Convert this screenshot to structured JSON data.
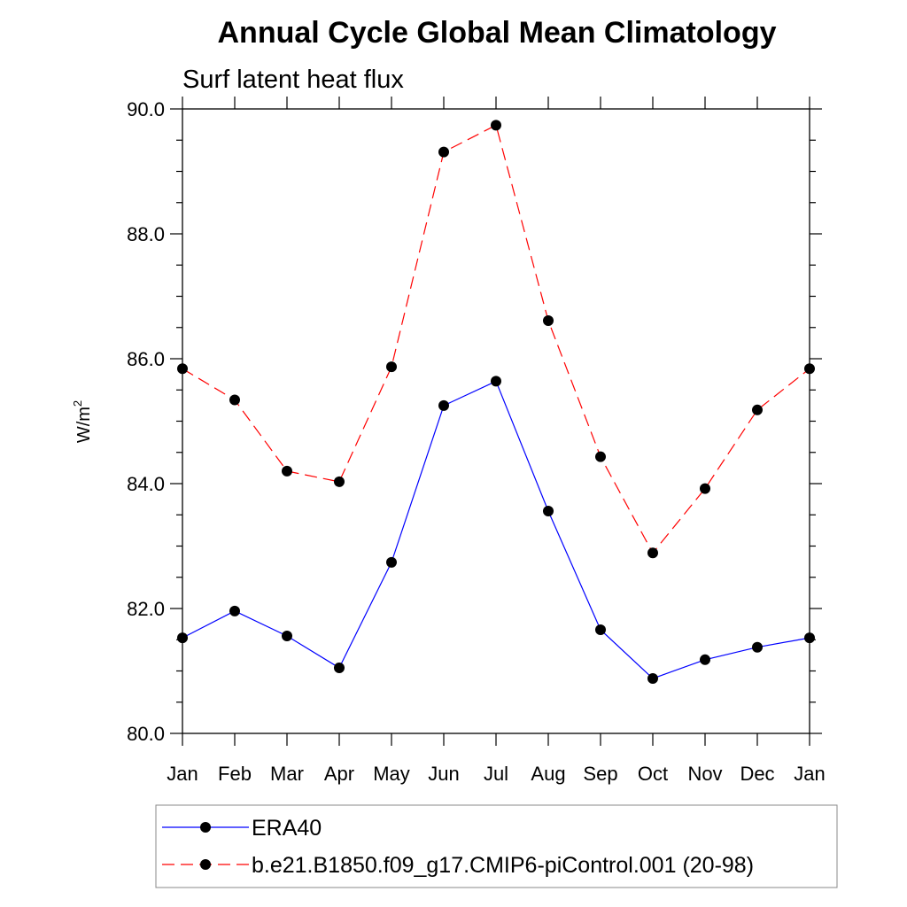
{
  "chart_data": {
    "type": "line",
    "title": "Annual Cycle Global Mean Climatology",
    "subtitle": "Surf latent heat flux",
    "ylabel": "W/m",
    "ylabel_superscript": "2",
    "categories": [
      "Jan",
      "Feb",
      "Mar",
      "Apr",
      "May",
      "Jun",
      "Jul",
      "Aug",
      "Sep",
      "Oct",
      "Nov",
      "Dec",
      "Jan"
    ],
    "ylim": [
      80.0,
      90.0
    ],
    "yticks": [
      "80.0",
      "82.0",
      "84.0",
      "86.0",
      "88.0",
      "90.0"
    ],
    "grid": false,
    "legend_position": "bottom",
    "series": [
      {
        "name": "ERA40",
        "color": "#0000ff",
        "line_style": "solid",
        "marker": "filled-circle",
        "values": [
          81.53,
          81.96,
          81.56,
          81.05,
          82.74,
          85.25,
          85.64,
          83.56,
          81.66,
          80.88,
          81.18,
          81.38,
          81.53
        ]
      },
      {
        "name": "b.e21.B1850.f09_g17.CMIP6-piControl.001 (20-98)",
        "color": "#ff0000",
        "line_style": "dashed",
        "marker": "filled-circle",
        "values": [
          85.84,
          85.34,
          84.2,
          84.03,
          85.87,
          89.31,
          89.74,
          86.61,
          84.43,
          82.89,
          83.92,
          85.18,
          85.84
        ]
      }
    ]
  }
}
